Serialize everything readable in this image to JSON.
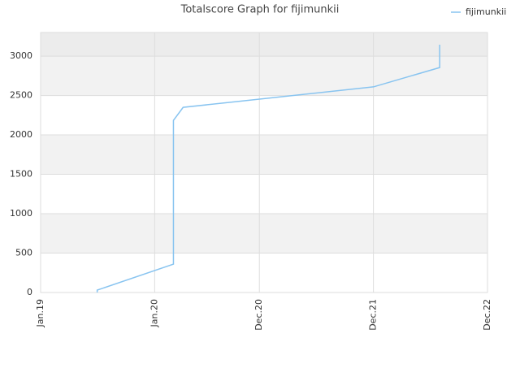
{
  "chart_data": {
    "type": "line",
    "title": "Totalscore Graph for fijimunkii",
    "x": [
      "2019-07",
      "2019-07",
      "2020-03",
      "2020-03",
      "2020-04",
      "2021-12",
      "2022-07",
      "2022-07"
    ],
    "series": [
      {
        "name": "fijimunkii",
        "color": "#88c4f0",
        "values": [
          0,
          30,
          360,
          2185,
          2350,
          2610,
          2855,
          3145
        ]
      }
    ],
    "xlim": [
      "2019-01",
      "2022-12"
    ],
    "xticks": [
      {
        "value": "2019-01",
        "label": "Jan.19"
      },
      {
        "value": "2020-01",
        "label": "Jan.20"
      },
      {
        "value": "2020-12",
        "label": "Dec.20"
      },
      {
        "value": "2021-12",
        "label": "Dec.21"
      },
      {
        "value": "2022-12",
        "label": "Dec.22"
      }
    ],
    "ylim": [
      0,
      3300
    ],
    "yticks": [
      0,
      500,
      1000,
      1500,
      2000,
      2500,
      3000
    ],
    "grid": true,
    "legend": "top-right"
  }
}
